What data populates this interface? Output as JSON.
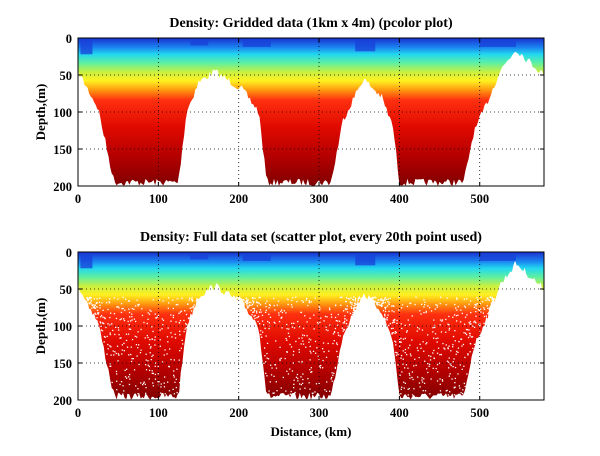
{
  "chart_data": [
    {
      "type": "heatmap",
      "style": "pcolor",
      "title": "Density: Gridded data (1km x 4m) (pcolor plot)",
      "xlabel": "",
      "ylabel": "Depth,(m)",
      "xlim": [
        0,
        580
      ],
      "ylim": [
        200,
        0
      ],
      "y_reversed": true,
      "xticks": [
        0,
        100,
        200,
        300,
        400,
        500
      ],
      "yticks": [
        0,
        50,
        100,
        150,
        200
      ],
      "grid": "dotted",
      "colormap": "jet",
      "bottom_depth_profile": [
        {
          "x": 0,
          "depth": 45
        },
        {
          "x": 25,
          "depth": 95
        },
        {
          "x": 45,
          "depth": 195
        },
        {
          "x": 125,
          "depth": 195
        },
        {
          "x": 135,
          "depth": 100
        },
        {
          "x": 150,
          "depth": 60
        },
        {
          "x": 170,
          "depth": 45
        },
        {
          "x": 205,
          "depth": 70
        },
        {
          "x": 225,
          "depth": 100
        },
        {
          "x": 235,
          "depth": 195
        },
        {
          "x": 315,
          "depth": 195
        },
        {
          "x": 330,
          "depth": 110
        },
        {
          "x": 355,
          "depth": 55
        },
        {
          "x": 378,
          "depth": 80
        },
        {
          "x": 392,
          "depth": 120
        },
        {
          "x": 400,
          "depth": 195
        },
        {
          "x": 480,
          "depth": 195
        },
        {
          "x": 492,
          "depth": 130
        },
        {
          "x": 510,
          "depth": 85
        },
        {
          "x": 525,
          "depth": 45
        },
        {
          "x": 545,
          "depth": 15
        },
        {
          "x": 565,
          "depth": 35
        },
        {
          "x": 580,
          "depth": 50
        }
      ]
    },
    {
      "type": "scatter",
      "title": "Density: Full data set (scatter plot, every 20th point used)",
      "xlabel": "Distance, (km)",
      "ylabel": "Depth,(m)",
      "xlim": [
        0,
        580
      ],
      "ylim": [
        200,
        0
      ],
      "y_reversed": true,
      "xticks": [
        0,
        100,
        200,
        300,
        400,
        500
      ],
      "yticks": [
        0,
        50,
        100,
        150,
        200
      ],
      "grid": "dotted",
      "colormap": "jet",
      "bottom_depth_profile": [
        {
          "x": 0,
          "depth": 45
        },
        {
          "x": 25,
          "depth": 95
        },
        {
          "x": 45,
          "depth": 195
        },
        {
          "x": 125,
          "depth": 195
        },
        {
          "x": 135,
          "depth": 100
        },
        {
          "x": 150,
          "depth": 60
        },
        {
          "x": 170,
          "depth": 45
        },
        {
          "x": 205,
          "depth": 70
        },
        {
          "x": 225,
          "depth": 100
        },
        {
          "x": 235,
          "depth": 195
        },
        {
          "x": 315,
          "depth": 195
        },
        {
          "x": 330,
          "depth": 110
        },
        {
          "x": 355,
          "depth": 55
        },
        {
          "x": 378,
          "depth": 80
        },
        {
          "x": 392,
          "depth": 120
        },
        {
          "x": 400,
          "depth": 195
        },
        {
          "x": 480,
          "depth": 195
        },
        {
          "x": 492,
          "depth": 130
        },
        {
          "x": 510,
          "depth": 85
        },
        {
          "x": 525,
          "depth": 45
        },
        {
          "x": 545,
          "depth": 15
        },
        {
          "x": 565,
          "depth": 35
        },
        {
          "x": 580,
          "depth": 50
        }
      ]
    }
  ]
}
